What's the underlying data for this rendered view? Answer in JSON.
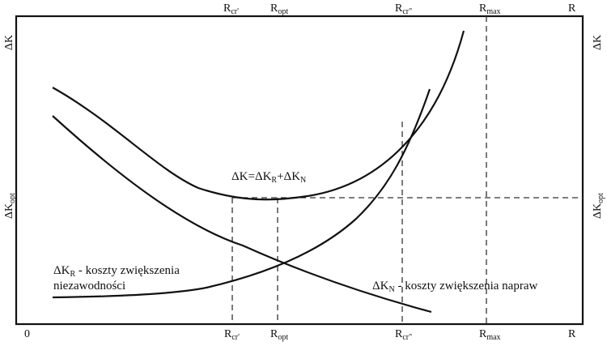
{
  "labels": {
    "r_cr1": "R",
    "r_cr1_sub": "cr'",
    "r_opt": "R",
    "r_opt_sub": "opt",
    "r_cr2": "R",
    "r_cr2_sub": "cr\"",
    "r_max": "R",
    "r_max_sub": "max",
    "r_axis": "R",
    "origin": "0",
    "dk_axis": "ΔK",
    "dk_opt": "ΔK",
    "dk_opt_sub": "opt",
    "total_formula_a": "ΔK=ΔK",
    "total_formula_sub1": "R",
    "total_formula_b": "+ΔK",
    "total_formula_sub2": "N",
    "kr_a": "ΔK",
    "kr_sub": "R",
    "kr_b": " - koszty zwiększenia",
    "kr_line2": "niezawodności",
    "kn_a": "ΔK",
    "kn_sub": "N",
    "kn_b": " - koszty zwiększenia napraw"
  }
}
